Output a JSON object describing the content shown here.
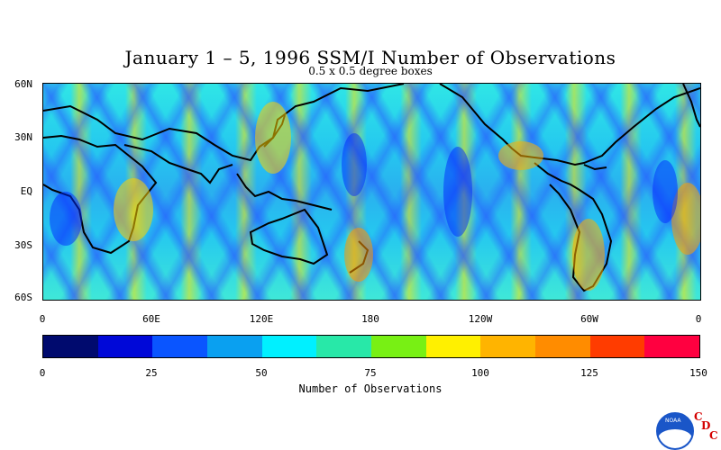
{
  "title": "January 1 – 5, 1996 SSM/I Number of Observations",
  "subtitle": "0.5 x 0.5 degree boxes",
  "y_axis_labels": [
    "60N",
    "30N",
    "EQ",
    "30S",
    "60S"
  ],
  "x_axis_labels": [
    "0",
    "60E",
    "120E",
    "180",
    "120W",
    "60W",
    "0"
  ],
  "colorbar": {
    "title": "Number of Observations",
    "tick_labels": [
      "0",
      "25",
      "50",
      "75",
      "100",
      "125",
      "150"
    ],
    "colors": [
      "#000a6e",
      "#0008d8",
      "#0a55ff",
      "#0aa0f0",
      "#00f0ff",
      "#28e8a8",
      "#78f014",
      "#fff000",
      "#ffb400",
      "#ff8c00",
      "#ff3c00",
      "#ff0040"
    ]
  },
  "logo": {
    "agency": "NOAA",
    "letters": [
      "C",
      "D",
      "C"
    ]
  }
}
